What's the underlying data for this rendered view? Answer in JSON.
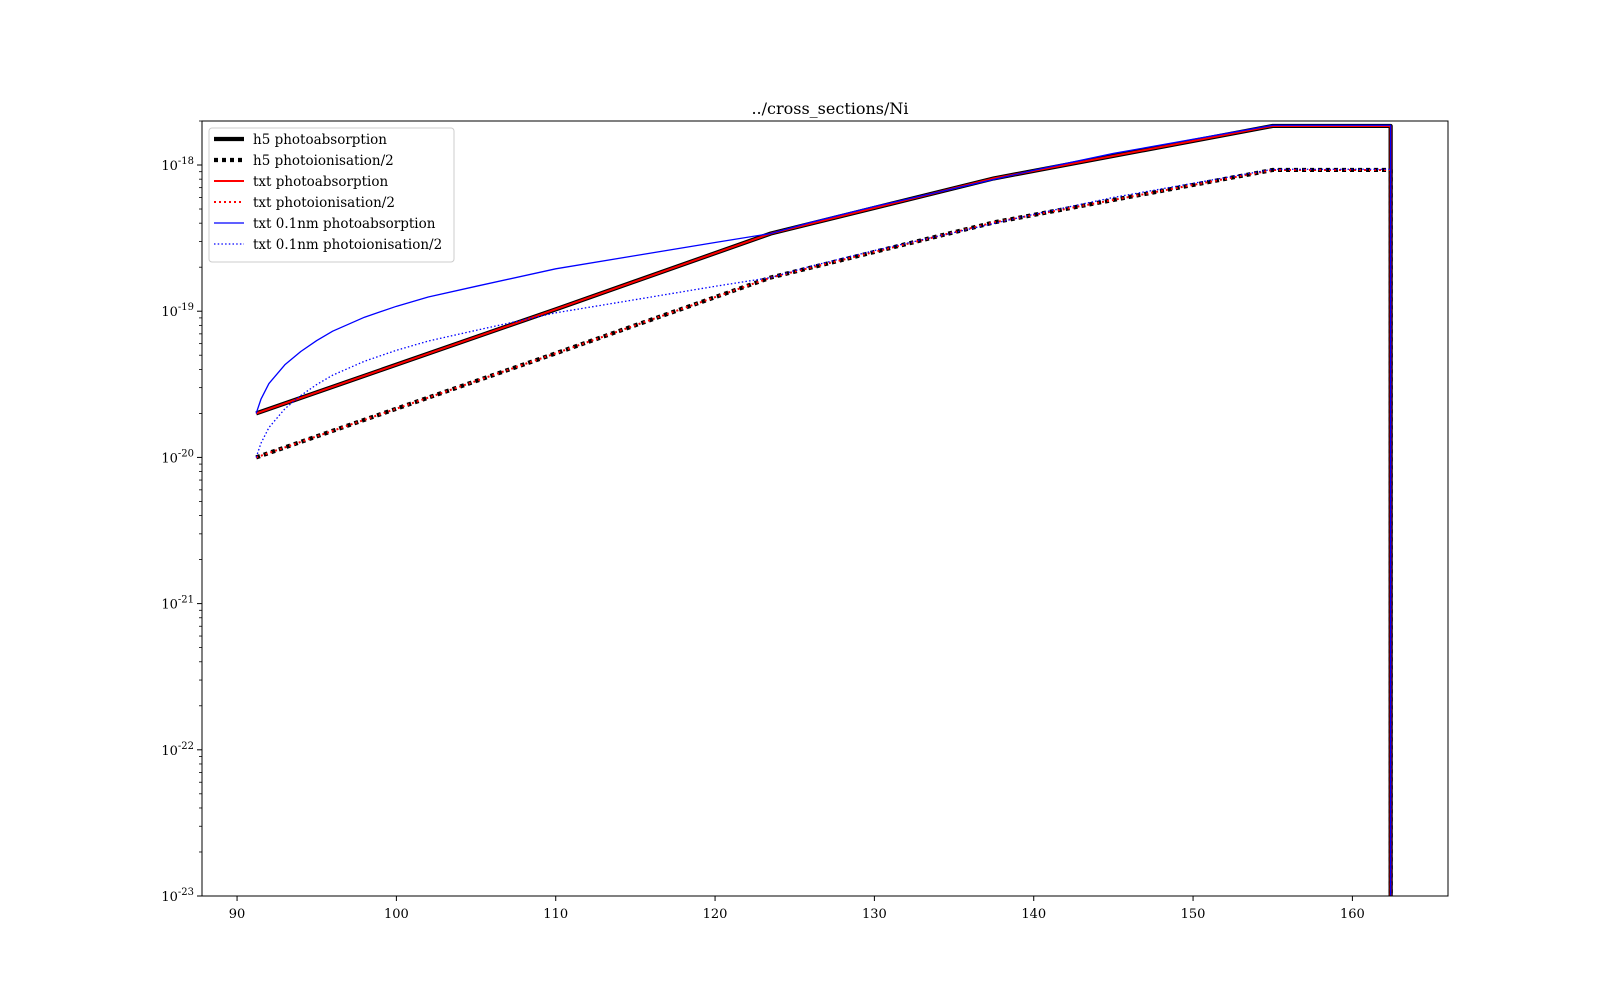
{
  "chart_data": {
    "type": "line",
    "title": "../cross_sections/Ni",
    "xlabel": "",
    "ylabel": "",
    "xlim": [
      87.8,
      166
    ],
    "ylim": [
      1e-23,
      2e-18
    ],
    "y_scale": "log",
    "grid": false,
    "legend_position": "top-left",
    "x_ticks": [
      90,
      100,
      110,
      120,
      130,
      140,
      150,
      160
    ],
    "y_ticks": [
      {
        "value": 1e-23,
        "base": "10",
        "exp": "-23"
      },
      {
        "value": 1e-22,
        "base": "10",
        "exp": "-22"
      },
      {
        "value": 1e-21,
        "base": "10",
        "exp": "-21"
      },
      {
        "value": 1e-20,
        "base": "10",
        "exp": "-20"
      },
      {
        "value": 1e-19,
        "base": "10",
        "exp": "-19"
      },
      {
        "value": 1e-18,
        "base": "10",
        "exp": "-18"
      }
    ],
    "series": [
      {
        "name": "h5 photoabsorption",
        "color": "#000000",
        "style": "solid-thick",
        "x": [
          91.2,
          110,
          123.5,
          137.5,
          155,
          162.4,
          162.4
        ],
        "y": [
          2e-20,
          1.03e-19,
          3.4e-19,
          8.1e-19,
          1.85e-18,
          1.85e-18,
          1e-23
        ]
      },
      {
        "name": "h5 photoionisation/2",
        "color": "#000000",
        "style": "dotted-thick",
        "x": [
          91.2,
          110,
          123.5,
          137.5,
          155,
          162.4,
          162.4
        ],
        "y": [
          1e-20,
          5.15e-20,
          1.7e-19,
          4.05e-19,
          9.25e-19,
          9.25e-19,
          1e-23
        ]
      },
      {
        "name": "txt photoabsorption",
        "color": "#ff0000",
        "style": "solid",
        "x": [
          91.2,
          110,
          123.5,
          137.5,
          155,
          162.4,
          162.4
        ],
        "y": [
          2e-20,
          1.03e-19,
          3.4e-19,
          8.1e-19,
          1.85e-18,
          1.85e-18,
          1e-23
        ]
      },
      {
        "name": "txt photoionisation/2",
        "color": "#ff0000",
        "style": "dotted",
        "x": [
          91.2,
          110,
          123.5,
          137.5,
          155,
          162.4,
          162.4
        ],
        "y": [
          1e-20,
          5.15e-20,
          1.7e-19,
          4.05e-19,
          9.25e-19,
          9.25e-19,
          1e-23
        ]
      },
      {
        "name": "txt 0.1nm photoabsorption",
        "color": "#0000ff",
        "style": "solid-thin",
        "x": [
          91.2,
          91.5,
          92,
          93,
          94,
          95,
          96,
          98,
          100,
          102,
          105,
          110,
          115,
          120,
          123.5,
          126,
          130,
          135,
          140,
          145,
          150,
          155,
          162.4,
          162.4
        ],
        "y": [
          2e-20,
          2.5e-20,
          3.2e-20,
          4.3e-20,
          5.3e-20,
          6.3e-20,
          7.3e-20,
          9.1e-20,
          1.08e-19,
          1.25e-19,
          1.48e-19,
          1.95e-19,
          2.4e-19,
          2.95e-19,
          3.4e-19,
          4.05e-19,
          5.2e-19,
          6.9e-19,
          9.2e-19,
          1.2e-18,
          1.5e-18,
          1.87e-18,
          1.87e-18,
          1e-23
        ]
      },
      {
        "name": "txt 0.1nm photoionisation/2",
        "color": "#0000ff",
        "style": "dotted-thin",
        "x": [
          91.2,
          91.5,
          92,
          93,
          94,
          95,
          96,
          98,
          100,
          102,
          105,
          110,
          115,
          120,
          123.5,
          126,
          130,
          135,
          140,
          145,
          150,
          155,
          162.4,
          162.4
        ],
        "y": [
          1e-20,
          1.25e-20,
          1.6e-20,
          2.15e-20,
          2.65e-20,
          3.15e-20,
          3.65e-20,
          4.55e-20,
          5.4e-20,
          6.25e-20,
          7.4e-20,
          9.75e-20,
          1.2e-19,
          1.48e-19,
          1.7e-19,
          2.03e-19,
          2.6e-19,
          3.45e-19,
          4.6e-19,
          6e-19,
          7.5e-19,
          9.35e-19,
          9.35e-19,
          1e-23
        ]
      }
    ]
  }
}
